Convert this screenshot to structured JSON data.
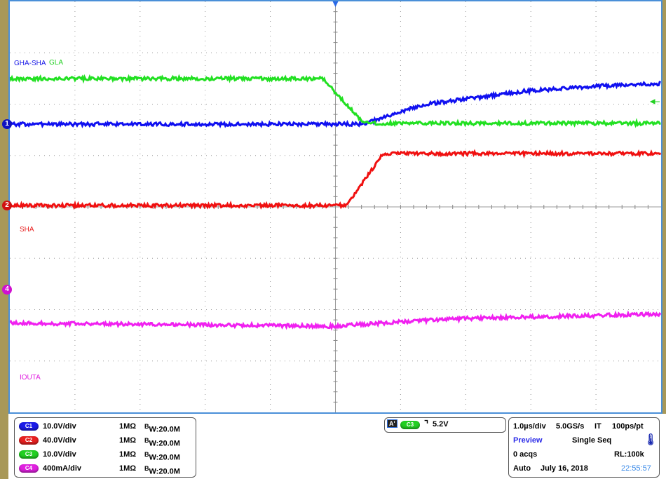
{
  "chart_data": {
    "type": "line",
    "xlabel": "",
    "ylabel": "",
    "xlim_us": [
      -5,
      5
    ],
    "grid": true,
    "divisions": {
      "x": 10,
      "y": 8
    },
    "series": [
      {
        "name": "GHA-SHA",
        "channel": "C1",
        "color": "#1010f0",
        "scale": "10.0V/div",
        "unit": "V",
        "ground_marker": "1",
        "x": [
          -5,
          0.43,
          1.3,
          2.9,
          4,
          5
        ],
        "y": [
          0,
          0,
          3.7,
          6.4,
          7.4,
          7.9
        ]
      },
      {
        "name": "GLA",
        "channel": "C3",
        "color": "#22e022",
        "scale": "10.0V/div",
        "unit": "V",
        "x": [
          -5,
          -0.19,
          0.43,
          5
        ],
        "y": [
          4.5,
          4.5,
          -4.2,
          -4.2
        ]
      },
      {
        "name": "SHA",
        "channel": "C2",
        "color": "#f01010",
        "scale": "40.0V/div",
        "unit": "V",
        "ground_marker": "2",
        "x": [
          -5,
          0.18,
          0.73,
          5
        ],
        "y": [
          0,
          0,
          40.5,
          40.5
        ]
      },
      {
        "name": "IOUTA",
        "channel": "C4",
        "color": "#f020f0",
        "scale": "400mA/div",
        "unit": "A",
        "ground_marker": "4",
        "x": [
          -5,
          0,
          1,
          2,
          5
        ],
        "y": [
          -0.26,
          -0.285,
          -0.25,
          -0.225,
          -0.19
        ]
      }
    ]
  },
  "labels": {
    "c1": "GHA-SHA",
    "c3": "GLA",
    "c2": "SHA",
    "c4": "IOUTA"
  },
  "markers": {
    "m1": "1",
    "m2": "2",
    "m4": "4"
  },
  "channels": [
    {
      "id": "C1",
      "scale": "10.0V/div",
      "imp": "1MΩ",
      "bw": "W:20.0M",
      "color": "#1a1ae8"
    },
    {
      "id": "C2",
      "scale": "40.0V/div",
      "imp": "1MΩ",
      "bw": "W:20.0M",
      "color": "#e82020"
    },
    {
      "id": "C3",
      "scale": "10.0V/div",
      "imp": "1MΩ",
      "bw": "W:20.0M",
      "color": "#22d022"
    },
    {
      "id": "C4",
      "scale": "400mA/div",
      "imp": "1MΩ",
      "bw": "W:20.0M",
      "color": "#e020e0"
    }
  ],
  "bw_prefix": "B",
  "trigger": {
    "label": "A'",
    "source": "C3",
    "level": "5.2V"
  },
  "acq": {
    "timebase": "1.0µs/div",
    "rate": "5.0GS/s",
    "mode": "IT",
    "res": "100ps/pt",
    "preview": "Preview",
    "seq": "Single Seq",
    "acqs": "0 acqs",
    "rl": "RL:100k",
    "auto": "Auto",
    "date": "July 16, 2018",
    "time": "22:55:57"
  }
}
